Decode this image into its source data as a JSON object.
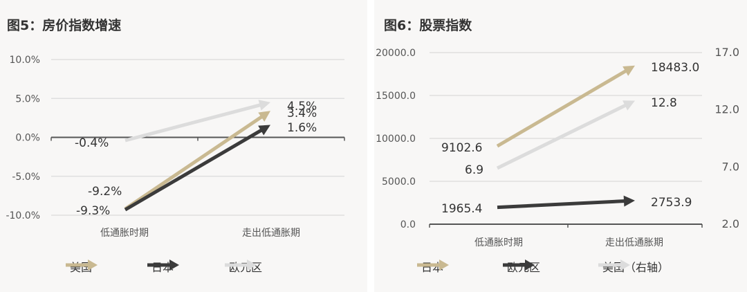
{
  "colors": {
    "beige": "#c9b991",
    "dark": "#3b3b3b",
    "light": "#dcdcdc",
    "grid": "#dadada",
    "axis": "#555555",
    "text": "#333333"
  },
  "left": {
    "title": "图5：房价指数增速",
    "legend": [
      {
        "label": "美国",
        "icon": "arrow-right-icon",
        "color": "#c9b991"
      },
      {
        "label": "日本",
        "icon": "arrow-right-icon",
        "color": "#3b3b3b"
      },
      {
        "label": "欧元区",
        "icon": "arrow-right-icon",
        "color": "#dcdcdc"
      }
    ]
  },
  "right": {
    "title": "图6：股票指数",
    "legend": [
      {
        "label": "日本",
        "icon": "arrow-right-icon",
        "color": "#c9b991"
      },
      {
        "label": "欧元区",
        "icon": "arrow-right-icon",
        "color": "#3b3b3b"
      },
      {
        "label": "美国（右轴）",
        "icon": "arrow-right-icon",
        "color": "#dcdcdc"
      }
    ]
  },
  "chart_data": [
    {
      "type": "line",
      "title": "图5：房价指数增速",
      "categories": [
        "低通胀时期",
        "走出低通胀期"
      ],
      "y_ticks": [
        "10.0%",
        "5.0%",
        "0.0%",
        "-5.0%",
        "-10.0%"
      ],
      "ylim": [
        -10,
        10
      ],
      "grid": true,
      "legend_position": "bottom",
      "series": [
        {
          "name": "美国",
          "values": [
            -9.2,
            3.4
          ],
          "labels": [
            "-9.2%",
            "3.4%"
          ],
          "color": "#c9b991"
        },
        {
          "name": "日本",
          "values": [
            -9.3,
            1.6
          ],
          "labels": [
            "-9.3%",
            "1.6%"
          ],
          "color": "#3b3b3b"
        },
        {
          "name": "欧元区",
          "values": [
            -0.4,
            4.5
          ],
          "labels": [
            "-0.4%",
            "4.5%"
          ],
          "color": "#dcdcdc"
        }
      ]
    },
    {
      "type": "line",
      "title": "图6：股票指数",
      "categories": [
        "低通胀时期",
        "走出低通胀期"
      ],
      "y_ticks": [
        "20000.0",
        "15000.0",
        "10000.0",
        "5000.0",
        "0.0"
      ],
      "y2_ticks": [
        "17.0",
        "12.0",
        "7.0",
        "2.0"
      ],
      "ylim": [
        0,
        20000
      ],
      "y2lim": [
        2,
        17
      ],
      "grid": true,
      "legend_position": "bottom",
      "series": [
        {
          "name": "日本",
          "values": [
            9102.6,
            18483.0
          ],
          "labels": [
            "9102.6",
            "18483.0"
          ],
          "axis": "left",
          "color": "#c9b991"
        },
        {
          "name": "欧元区",
          "values": [
            1965.4,
            2753.9
          ],
          "labels": [
            "1965.4",
            "2753.9"
          ],
          "axis": "left",
          "color": "#3b3b3b"
        },
        {
          "name": "美国（右轴）",
          "values": [
            6.9,
            12.8
          ],
          "labels": [
            "6.9",
            "12.8"
          ],
          "axis": "right",
          "color": "#dcdcdc"
        }
      ]
    }
  ]
}
